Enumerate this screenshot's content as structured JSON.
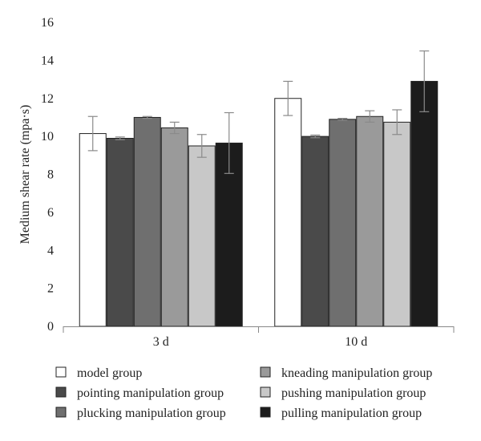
{
  "chart_data": {
    "type": "bar",
    "title": "",
    "xlabel": "",
    "ylabel": "Medium shear rate (mpa·s)",
    "ylim": [
      0,
      16
    ],
    "yticks": [
      0,
      2,
      4,
      6,
      8,
      10,
      12,
      14,
      16
    ],
    "categories": [
      "3 d",
      "10 d"
    ],
    "grid": false,
    "legend_position": "bottom",
    "series": [
      {
        "name": "model group",
        "color": "#ffffff",
        "values": [
          10.15,
          12.0
        ],
        "errors": [
          0.9,
          0.9
        ]
      },
      {
        "name": "pointing manipulation group",
        "color": "#4a4a4a",
        "values": [
          9.9,
          10.0
        ],
        "errors": [
          0.07,
          0.07
        ]
      },
      {
        "name": "plucking manipulation group",
        "color": "#6f6f6f",
        "values": [
          11.0,
          10.9
        ],
        "errors": [
          0.05,
          0.05
        ]
      },
      {
        "name": "kneading manipulation group",
        "color": "#9a9a9a",
        "values": [
          10.45,
          11.05
        ],
        "errors": [
          0.3,
          0.3
        ]
      },
      {
        "name": "pushing manipulation group",
        "color": "#c8c8c8",
        "values": [
          9.5,
          10.75
        ],
        "errors": [
          0.6,
          0.65
        ]
      },
      {
        "name": "pulling manipulation group",
        "color": "#1c1c1c",
        "values": [
          9.65,
          12.9
        ],
        "errors": [
          1.6,
          1.6
        ]
      }
    ]
  }
}
